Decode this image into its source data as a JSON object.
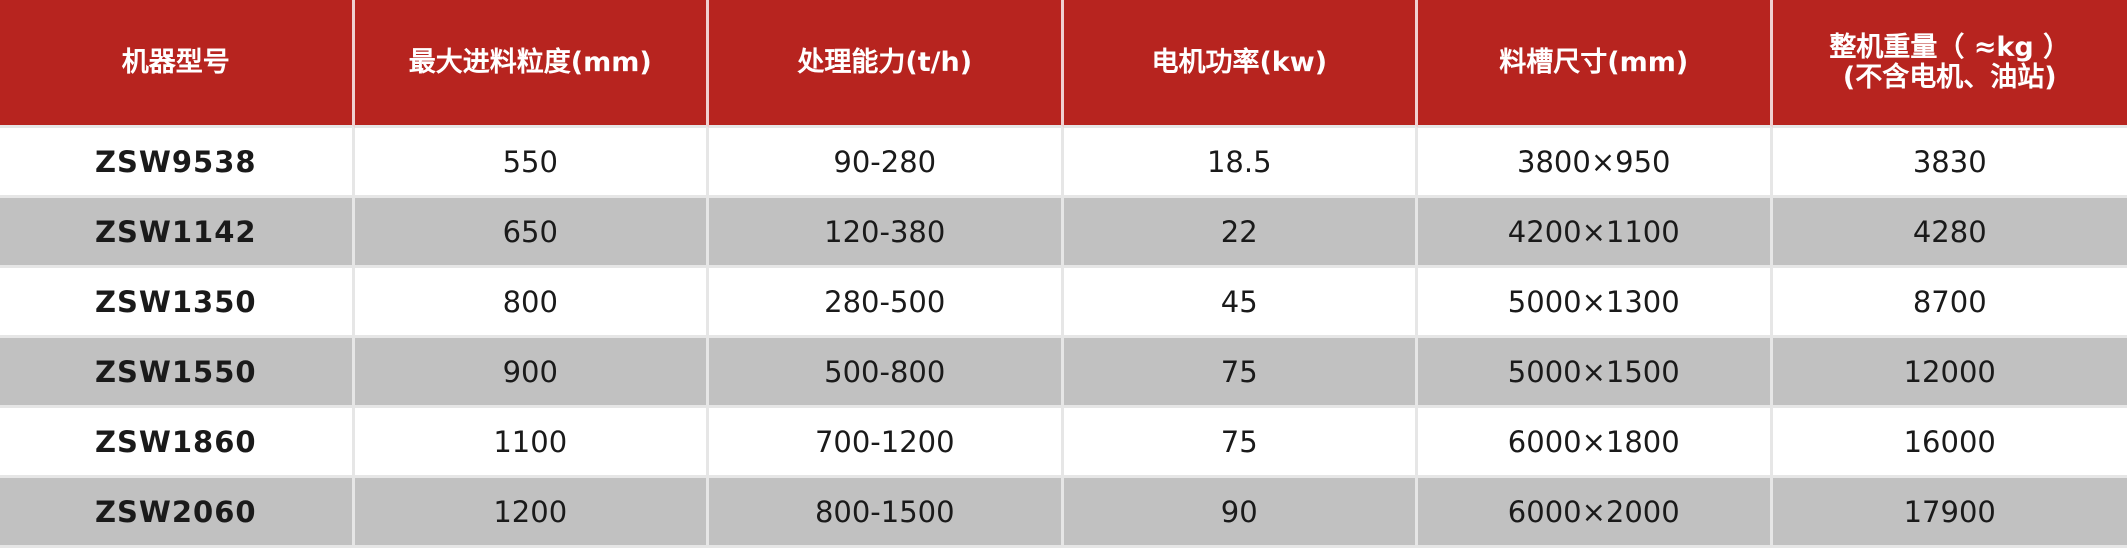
{
  "table": {
    "headers": [
      "机器型号",
      "最大进料粒度(mm)",
      "处理能力(t/h)",
      "电机功率(kw)",
      "料槽尺寸(mm)",
      [
        "整机重量（ ≈kg ）",
        "(不含电机、油站)"
      ]
    ],
    "rows": [
      [
        "ZSW9538",
        "550",
        "90-280",
        "18.5",
        "3800×950",
        "3830"
      ],
      [
        "ZSW1142",
        "650",
        "120-380",
        "22",
        "4200×1100",
        "4280"
      ],
      [
        "ZSW1350",
        "800",
        "280-500",
        "45",
        "5000×1300",
        "8700"
      ],
      [
        "ZSW1550",
        "900",
        "500-800",
        "75",
        "5000×1500",
        "12000"
      ],
      [
        "ZSW1860",
        "1100",
        "700-1200",
        "75",
        "6000×1800",
        "16000"
      ],
      [
        "ZSW2060",
        "1200",
        "800-1500",
        "90",
        "6000×2000",
        "17900"
      ]
    ]
  }
}
